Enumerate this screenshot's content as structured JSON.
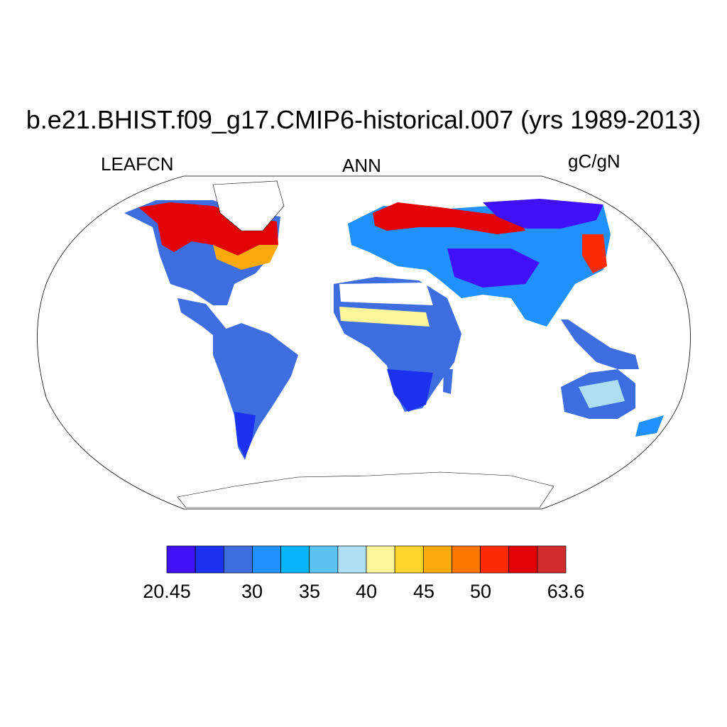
{
  "title": "b.e21.BHIST.f09_g17.CMIP6-historical.007 (yrs 1989-2013)",
  "left_string": "LEAFCN",
  "center_string": "ANN",
  "right_string": "gC/gN",
  "projection": "Robinson",
  "colorbar": {
    "orientation": "horizontal",
    "colors": [
      "#4011f6",
      "#1c32f0",
      "#3e6de0",
      "#2191ff",
      "#05b4fa",
      "#5cc2f2",
      "#aedef2",
      "#fff699",
      "#fcd62c",
      "#fbaa0b",
      "#fd7600",
      "#fd2b03",
      "#e20201",
      "#d22b2b"
    ],
    "labels": [
      {
        "text": "20.45",
        "index": 0
      },
      {
        "text": "30",
        "index": 2
      },
      {
        "text": "35",
        "index": 3
      },
      {
        "text": "40",
        "index": 4
      },
      {
        "text": "45",
        "index": 5
      },
      {
        "text": "50",
        "index": 6
      },
      {
        "text": "63.6",
        "index": 7
      }
    ]
  },
  "chart_data": {
    "type": "heatmap",
    "title": "b.e21.BHIST.f09_g17.CMIP6-historical.007 (yrs 1989-2013)",
    "variable": "LEAFCN",
    "season": "ANN",
    "units": "gC/gN",
    "value_range": [
      20.45,
      63.6
    ],
    "regions": [
      {
        "name": "boreal North America",
        "value_class": "high (50-63.6)"
      },
      {
        "name": "northern Europe / western Russia",
        "value_class": "high (50-63.6)"
      },
      {
        "name": "eastern Siberia",
        "value_class": "low (20.45-30)"
      },
      {
        "name": "Sahel",
        "value_class": "mid (40-45)"
      },
      {
        "name": "Amazon",
        "value_class": "low (30-35)"
      },
      {
        "name": "southern Africa",
        "value_class": "low (20.45-30)"
      },
      {
        "name": "central Australia",
        "value_class": "mid (35-40)"
      }
    ]
  }
}
